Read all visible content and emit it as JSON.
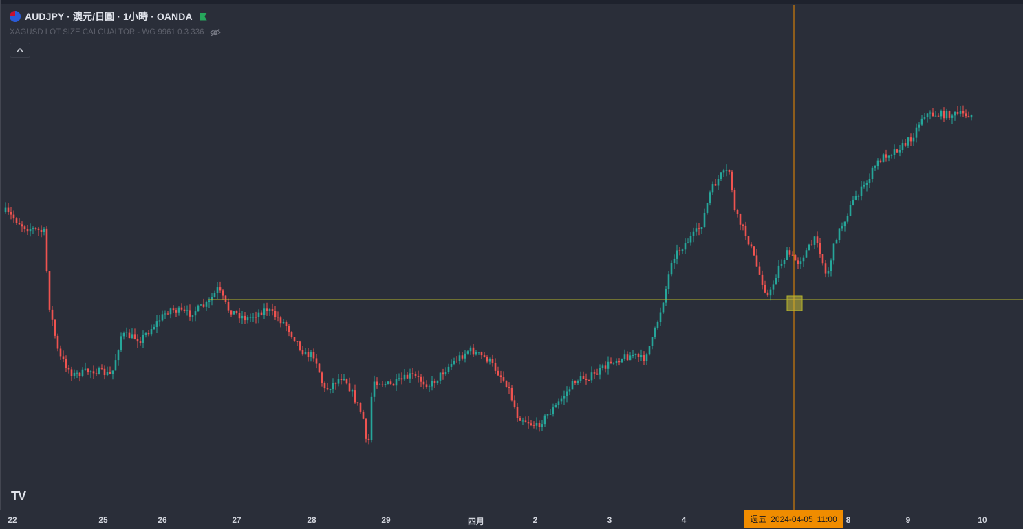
{
  "legend": {
    "symbol_line": "AUDJPY · 澳元/日圓 · 1小時 · OANDA",
    "indicator": "XAGUSD LOT SIZE CALCUALTOR - WG 9961 0.3 336",
    "icons": [
      "australia-flag-icon",
      "market-open-flag-icon",
      "eye-hidden-icon",
      "chevron-up-icon"
    ]
  },
  "colors": {
    "background": "#2a2e39",
    "up": "#26a69a",
    "down": "#ef5350",
    "horizontal_line": "#b5b52a",
    "crosshair": "#f08c00"
  },
  "time_axis": {
    "ticks": [
      "22",
      "25",
      "26",
      "27",
      "28",
      "29",
      "四月",
      "2",
      "3",
      "4",
      "8",
      "9",
      "10"
    ],
    "cursor_day": "週五",
    "cursor_date": "2024-04-05",
    "cursor_time": "11:00"
  },
  "chart_data": {
    "type": "candlestick",
    "title": "AUDJPY · 澳元/日圓 · 1小時 · OANDA",
    "x_tick_labels": [
      "22",
      "25",
      "26",
      "27",
      "28",
      "29",
      "四月",
      "2",
      "3",
      "4",
      "8",
      "9",
      "10"
    ],
    "y_axis_visible": false,
    "grid": false,
    "horizontal_line_relative_level": 0.555,
    "close_path_relative": [
      [
        0,
        0.3
      ],
      [
        0.02,
        0.33
      ],
      [
        0.04,
        0.34
      ],
      [
        0.045,
        0.48
      ],
      [
        0.055,
        0.58
      ],
      [
        0.07,
        0.62
      ],
      [
        0.09,
        0.61
      ],
      [
        0.11,
        0.62
      ],
      [
        0.12,
        0.54
      ],
      [
        0.14,
        0.55
      ],
      [
        0.155,
        0.52
      ],
      [
        0.17,
        0.49
      ],
      [
        0.19,
        0.5
      ],
      [
        0.21,
        0.48
      ],
      [
        0.22,
        0.45
      ],
      [
        0.23,
        0.49
      ],
      [
        0.25,
        0.51
      ],
      [
        0.27,
        0.49
      ],
      [
        0.29,
        0.52
      ],
      [
        0.3,
        0.55
      ],
      [
        0.31,
        0.58
      ],
      [
        0.32,
        0.58
      ],
      [
        0.33,
        0.65
      ],
      [
        0.35,
        0.62
      ],
      [
        0.37,
        0.7
      ],
      [
        0.375,
        0.78
      ],
      [
        0.38,
        0.63
      ],
      [
        0.4,
        0.64
      ],
      [
        0.42,
        0.62
      ],
      [
        0.44,
        0.64
      ],
      [
        0.46,
        0.6
      ],
      [
        0.48,
        0.57
      ],
      [
        0.5,
        0.59
      ],
      [
        0.52,
        0.64
      ],
      [
        0.53,
        0.7
      ],
      [
        0.55,
        0.72
      ],
      [
        0.57,
        0.68
      ],
      [
        0.59,
        0.63
      ],
      [
        0.61,
        0.62
      ],
      [
        0.63,
        0.59
      ],
      [
        0.65,
        0.58
      ],
      [
        0.66,
        0.59
      ],
      [
        0.67,
        0.55
      ],
      [
        0.68,
        0.48
      ],
      [
        0.685,
        0.44
      ],
      [
        0.69,
        0.39
      ],
      [
        0.7,
        0.37
      ],
      [
        0.72,
        0.33
      ],
      [
        0.73,
        0.26
      ],
      [
        0.74,
        0.23
      ],
      [
        0.75,
        0.22
      ],
      [
        0.755,
        0.3
      ],
      [
        0.77,
        0.36
      ],
      [
        0.78,
        0.42
      ],
      [
        0.79,
        0.47
      ],
      [
        0.8,
        0.41
      ],
      [
        0.81,
        0.38
      ],
      [
        0.82,
        0.4
      ],
      [
        0.84,
        0.35
      ],
      [
        0.85,
        0.43
      ],
      [
        0.86,
        0.35
      ],
      [
        0.87,
        0.31
      ],
      [
        0.88,
        0.27
      ],
      [
        0.89,
        0.25
      ],
      [
        0.9,
        0.21
      ],
      [
        0.91,
        0.19
      ],
      [
        0.92,
        0.18
      ],
      [
        0.93,
        0.17
      ],
      [
        0.94,
        0.15
      ],
      [
        0.95,
        0.11
      ]
    ]
  }
}
